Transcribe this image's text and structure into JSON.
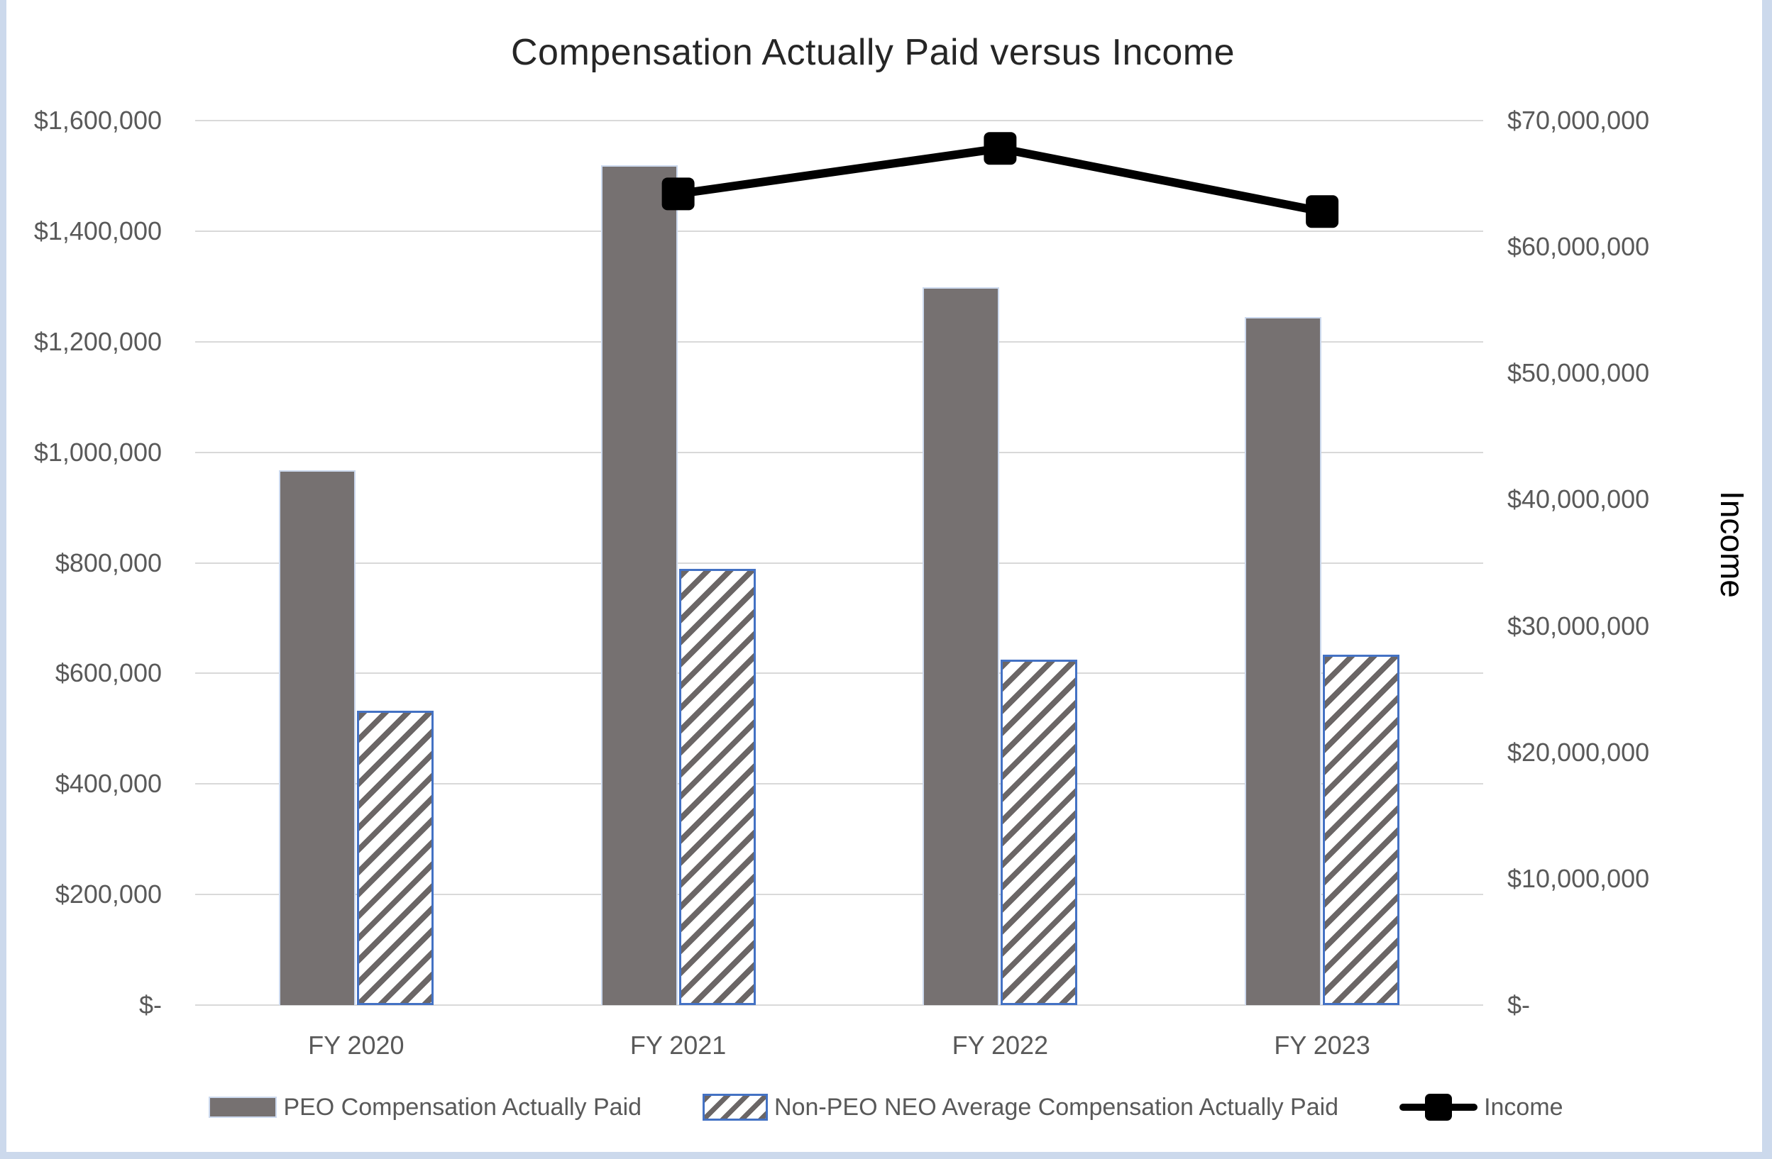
{
  "chart_data": {
    "type": "combo-bar-line",
    "title": "Compensation Actually Paid versus Income",
    "categories": [
      "FY 2020",
      "FY 2021",
      "FY 2022",
      "FY 2023"
    ],
    "series": [
      {
        "name": "PEO Compensation Actually Paid",
        "type": "bar",
        "axis": "left",
        "values": [
          967000,
          1519000,
          1299000,
          1245000
        ]
      },
      {
        "name": "Non-PEO NEO Average Compensation Actually Paid",
        "type": "bar",
        "axis": "left",
        "values": [
          533000,
          789000,
          625000,
          634000
        ]
      },
      {
        "name": "Income",
        "type": "line",
        "axis": "right",
        "values": [
          null,
          64200000,
          67800000,
          62800000
        ]
      }
    ],
    "left_axis": {
      "min": 0,
      "max": 1600000,
      "step": 200000,
      "tick_labels": [
        "$-",
        "$200,000",
        "$400,000",
        "$600,000",
        "$800,000",
        "$1,000,000",
        "$1,200,000",
        "$1,400,000",
        "$1,600,000"
      ]
    },
    "right_axis": {
      "title": "Income",
      "min": 0,
      "max": 70000000,
      "step": 10000000,
      "tick_labels": [
        "$-",
        "$10,000,000",
        "$20,000,000",
        "$30,000,000",
        "$40,000,000",
        "$50,000,000",
        "$60,000,000",
        "$70,000,000"
      ]
    },
    "legend_position": "bottom",
    "grid": true
  },
  "colors": {
    "peo_bar_fill": "#767171",
    "peo_bar_border": "#ccd9ee",
    "hatch_stripe": "#6b6666",
    "hatch_background": "#ffffff",
    "hatch_border": "#4472c4",
    "income_line": "#000000",
    "gridline": "#d9d9d9",
    "axis_text": "#595959",
    "title_text": "#262626",
    "page_edge": "#ccd9ec"
  }
}
